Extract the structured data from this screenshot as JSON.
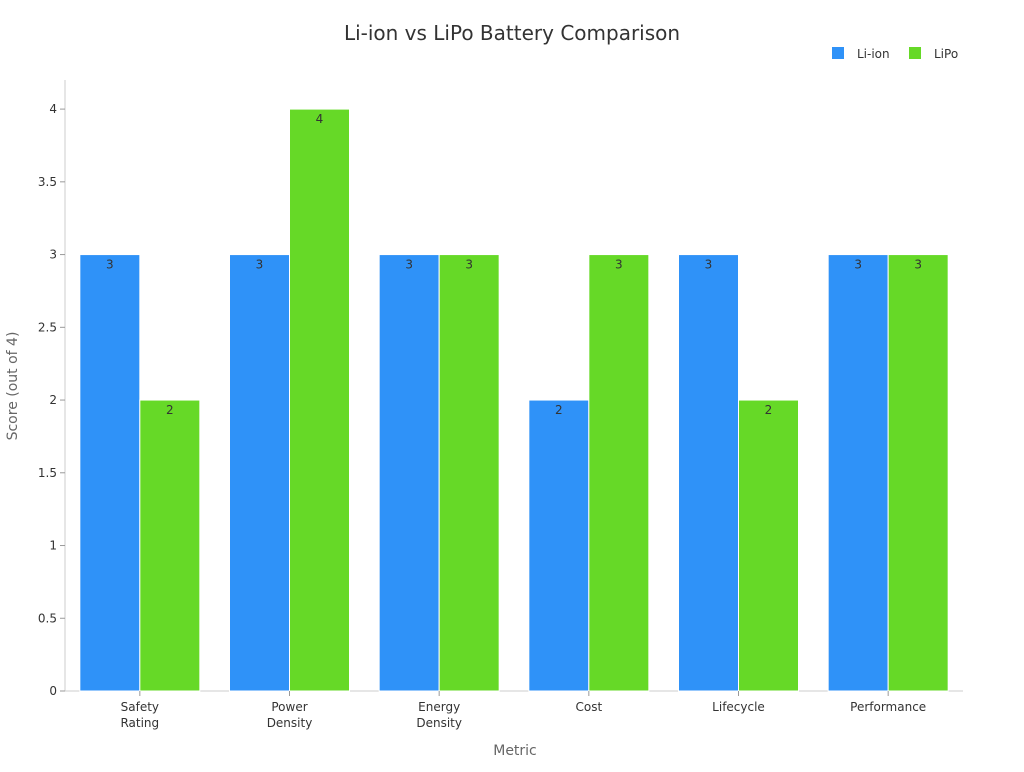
{
  "chart_data": {
    "type": "bar",
    "title": "Li-ion vs LiPo Battery Comparison",
    "xlabel": "Metric",
    "ylabel": "Score (out of 4)",
    "categories": [
      [
        "Safety",
        "Rating"
      ],
      [
        "Power",
        "Density"
      ],
      [
        "Energy",
        "Density"
      ],
      [
        "Cost"
      ],
      [
        "Lifecycle"
      ],
      [
        "Performance"
      ]
    ],
    "series": [
      {
        "name": "Li-ion",
        "color": "#2f92f8",
        "values": [
          3,
          3,
          3,
          2,
          3,
          3
        ]
      },
      {
        "name": "LiPo",
        "color": "#66d927",
        "values": [
          2,
          4,
          3,
          3,
          2,
          3
        ]
      }
    ],
    "ylim": [
      0,
      4.2
    ],
    "yticks": [
      "0",
      "0.5",
      "1",
      "1.5",
      "2",
      "2.5",
      "3",
      "3.5",
      "4"
    ],
    "data_labels": true,
    "legend_position": "top-right",
    "grid": false
  }
}
